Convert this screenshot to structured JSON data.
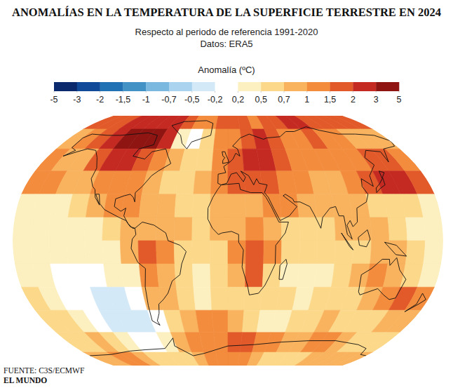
{
  "chart_data": {
    "type": "heatmap",
    "title": "ANOMALÍAS EN LA TEMPERATURA DE LA SUPERFICIE TERRESTRE EN 2024",
    "subtitle": [
      "Respecto al periodo de referencia 1991-2020",
      "Datos: ERA5"
    ],
    "source": "FUENTE: C3S/ECMWF",
    "publisher": "EL MUNDO",
    "tick_labels": false,
    "xlim": [
      -180,
      180
    ],
    "ylim": [
      -90,
      90
    ],
    "x": [
      -172.5,
      -157.5,
      -142.5,
      -127.5,
      -112.5,
      -97.5,
      -82.5,
      -67.5,
      -52.5,
      -37.5,
      -22.5,
      -7.5,
      7.5,
      22.5,
      37.5,
      52.5,
      67.5,
      82.5,
      97.5,
      112.5,
      127.5,
      142.5,
      157.5,
      172.5
    ],
    "y": [
      82.5,
      67.5,
      52.5,
      37.5,
      22.5,
      7.5,
      -7.5,
      -22.5,
      -37.5,
      -52.5,
      -67.5,
      -82.5
    ],
    "cells": [
      [
        1.5,
        1.5,
        1.5,
        2,
        2.5,
        2.5,
        2.5,
        2,
        1.5,
        1,
        1,
        1.5,
        1.5,
        1.5,
        1,
        1.5,
        1.5,
        2,
        2,
        1.5,
        1.5,
        1.5,
        1.5,
        1.5
      ],
      [
        0.8,
        1,
        1.5,
        2.5,
        3,
        3,
        3,
        2,
        0.3,
        0,
        0.5,
        1,
        1.2,
        1.8,
        2,
        1.5,
        1,
        1.2,
        1.5,
        1.2,
        1,
        0.8,
        0.8,
        0.7
      ],
      [
        1,
        0.8,
        0.7,
        1.5,
        2,
        2,
        1.5,
        1,
        0.7,
        0.6,
        0.6,
        1,
        1.5,
        2,
        2,
        1.5,
        1.3,
        1,
        1,
        1,
        1.2,
        1.5,
        1.5,
        1.2
      ],
      [
        1.2,
        1,
        0.7,
        0.7,
        1,
        1,
        1,
        0.8,
        0.5,
        0.6,
        0.8,
        1,
        1.5,
        1.5,
        1.5,
        1.2,
        1,
        0.9,
        0.9,
        1,
        1.5,
        2,
        2,
        1.5
      ],
      [
        0.4,
        0.4,
        0.4,
        0.5,
        0.8,
        1,
        1,
        0.8,
        0.7,
        0.6,
        0.6,
        0.7,
        0.7,
        0.8,
        1,
        1,
        0.7,
        0.7,
        0.8,
        0.7,
        0.6,
        0.5,
        0.5,
        0.4
      ],
      [
        0.3,
        0.2,
        0.3,
        0.3,
        0.4,
        0.6,
        0.9,
        0.9,
        0.8,
        0.7,
        0.6,
        0.7,
        0.9,
        1,
        0.8,
        0.6,
        0.6,
        0.6,
        0.7,
        0.8,
        0.7,
        0.5,
        0.4,
        0.3
      ],
      [
        0.3,
        0.3,
        0.3,
        0.2,
        0.3,
        0.4,
        0.8,
        1.5,
        1.2,
        0.6,
        0.5,
        0.6,
        1,
        1.5,
        1,
        0.5,
        0.5,
        0.5,
        0.5,
        0.6,
        0.7,
        0.8,
        0.6,
        0.4
      ],
      [
        0.3,
        0.2,
        0.1,
        0,
        0,
        0.2,
        0.4,
        1.2,
        0.8,
        0.5,
        0.4,
        0.6,
        0.8,
        1.5,
        0.6,
        0.4,
        0.4,
        0.4,
        0.5,
        0.8,
        1,
        0.8,
        0.5,
        0.4
      ],
      [
        0.5,
        0.3,
        0,
        -0.2,
        -0.3,
        -0.3,
        0,
        0.8,
        0.8,
        0.5,
        0.4,
        0.5,
        0.6,
        0.6,
        0.5,
        0.5,
        0.4,
        0.5,
        0.5,
        0.6,
        0.8,
        1,
        1.5,
        1
      ],
      [
        0.6,
        0.5,
        0.3,
        0,
        -0.3,
        -0.5,
        -0.5,
        0,
        0.5,
        0.8,
        1,
        1,
        0.8,
        0.5,
        0.3,
        0.3,
        0.5,
        0.6,
        0.7,
        0.6,
        0.5,
        0.6,
        0.8,
        0.7
      ],
      [
        0.5,
        0.6,
        0.8,
        0.6,
        0.3,
        0,
        -0.2,
        0.3,
        0.8,
        1,
        1.2,
        1.2,
        1.5,
        1.5,
        1.2,
        1,
        0.8,
        0.8,
        1,
        1,
        0.8,
        0.6,
        0.5,
        0.5
      ],
      [
        0.8,
        0.8,
        1,
        1,
        0.8,
        0.6,
        0.5,
        0.5,
        0.6,
        0.8,
        1,
        1,
        1.2,
        1,
        0.8,
        0.6,
        0.5,
        0.5,
        0.6,
        0.7,
        0.7,
        0.8,
        0.8,
        0.8
      ]
    ],
    "colorbar": {
      "label": "Anomalía (ºC)",
      "ticks": [
        -5,
        -3,
        -2,
        {
          "value": -1.5,
          "label": "-1,5"
        },
        -1,
        {
          "value": -0.7,
          "label": "-0,7"
        },
        {
          "value": -0.5,
          "label": "-0,5"
        },
        {
          "value": -0.2,
          "label": "-0,2"
        },
        {
          "value": 0.2,
          "label": "0,2"
        },
        {
          "value": 0.5,
          "label": "0,5"
        },
        {
          "value": 0.7,
          "label": "0,7"
        },
        1,
        {
          "value": 1.5,
          "label": "1,5"
        },
        2,
        3,
        5
      ],
      "colors": [
        "#0b2a6e",
        "#124a9a",
        "#2171b5",
        "#4292c6",
        "#7bb8e0",
        "#a9d3ee",
        "#d4e9f7",
        "#ffffff",
        "#fdf0c0",
        "#fcd88a",
        "#f9b35e",
        "#f38c3d",
        "#e25a2a",
        "#c42a22",
        "#8e1512"
      ]
    }
  }
}
